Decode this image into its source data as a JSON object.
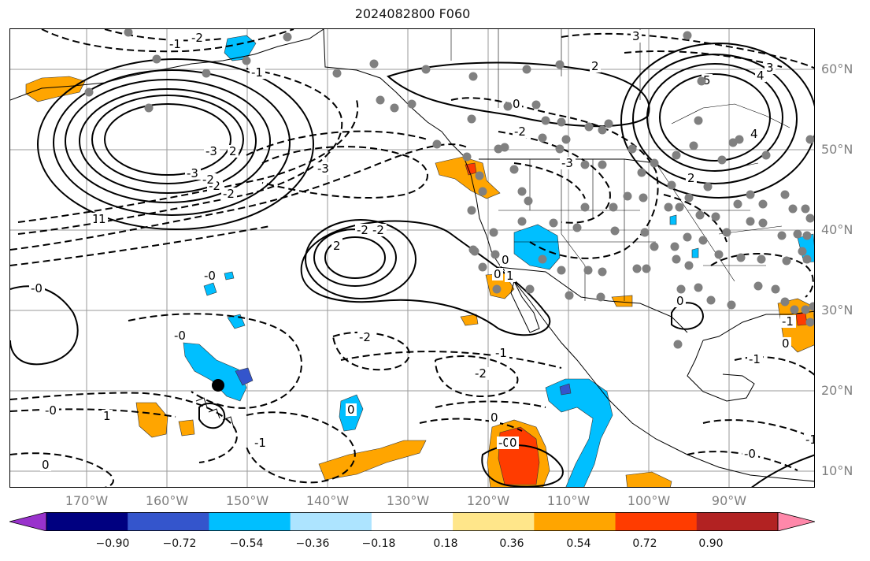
{
  "title": "2024082800 F060",
  "latitude_labels": [
    "60°N",
    "50°N",
    "40°N",
    "30°N",
    "20°N",
    "10°N"
  ],
  "longitude_labels": [
    "170°W",
    "160°W",
    "150°W",
    "140°W",
    "130°W",
    "120°W",
    "110°W",
    "100°W",
    "90°W"
  ],
  "colorbar": {
    "colors": [
      "#9932cc",
      "#000080",
      "#3455cc",
      "#00bfff",
      "#ade4ff",
      "#ffffff",
      "#ffe68a",
      "#ffa500",
      "#ff3c00",
      "#b22222",
      "#ff88aa"
    ],
    "ticks": [
      "−0.90",
      "−0.72",
      "−0.54",
      "−0.36",
      "−0.18",
      "0.18",
      "0.36",
      "0.54",
      "0.72",
      "0.90"
    ]
  },
  "contour_labels": [
    "-2",
    "-1",
    "-2",
    "-3",
    "-2",
    "-3",
    "-3",
    "2",
    "-2",
    "1",
    "-1",
    "3",
    "4",
    "5",
    "2",
    "0",
    "0",
    "-0",
    "2",
    "-2",
    "-2",
    "-1",
    "-2",
    "-0",
    "-0",
    "0",
    "1",
    "-1",
    "-0",
    "0",
    "-0",
    "0",
    "0",
    "0",
    "-3",
    "-2",
    "1",
    "0",
    "2",
    "3",
    "4",
    "1",
    "2",
    "-2",
    "-1",
    "0",
    "0",
    "-1",
    "-1",
    "-0"
  ],
  "station_marks": 120
}
